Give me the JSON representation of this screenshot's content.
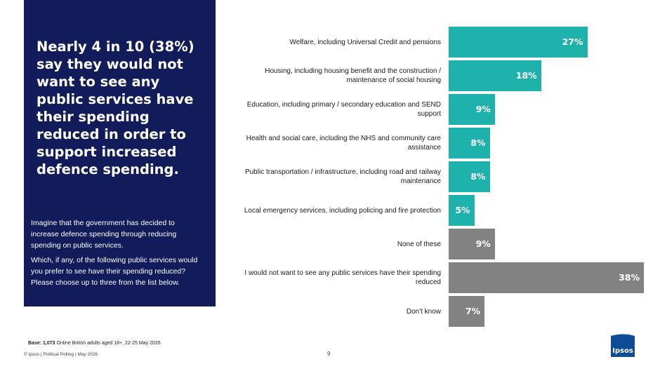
{
  "headline": "Nearly 4 in 10 (38%) say they would not want to see any public services have their spending reduced in order to support increased defence spending.",
  "question": {
    "paragraph1": "Imagine that the government has decided to increase defence spending through reducing spending on public services.",
    "paragraph2": "Which, if any, of the following public services would you prefer to see have their spending reduced? Please choose up to three from the list below."
  },
  "chart_data": {
    "type": "bar",
    "orientation": "horizontal",
    "categories": [
      "Welfare, including Universal Credit and pensions",
      "Housing, including housing benefit and the construction / maintenance of social housing",
      "Education, including primary / secondary education and SEND support",
      "Health and social care, including the NHS and community care assistance",
      "Public transportation / infrastructure, including road and railway maintenance",
      "Local emergency services, including policing and fire protection",
      "None of these",
      "I would not want to see any public services have their spending reduced",
      "Don't know"
    ],
    "values": [
      27,
      18,
      9,
      8,
      8,
      5,
      9,
      38,
      7
    ],
    "value_labels": [
      "27%",
      "18%",
      "9%",
      "8%",
      "8%",
      "5%",
      "9%",
      "38%",
      "7%"
    ],
    "bar_colors": [
      "#1fb1ac",
      "#1fb1ac",
      "#1fb1ac",
      "#1fb1ac",
      "#1fb1ac",
      "#1fb1ac",
      "#828282",
      "#828282",
      "#828282"
    ],
    "xlim": [
      0,
      38
    ],
    "grid": false,
    "legend": "none"
  },
  "footer": {
    "base_label": "Base:",
    "base_count": "1,073",
    "base_text": "Online British adults aged 18+, 22-25 May 2026",
    "copyright": "© Ipsos | Political Polling | May 2026",
    "page_number": "9",
    "logo_text": "Ipsos"
  },
  "colors": {
    "panel": "#121c5a",
    "accent_teal": "#1fb1ac",
    "neutral_grey": "#828282",
    "logo_blue": "#0f4c97"
  }
}
